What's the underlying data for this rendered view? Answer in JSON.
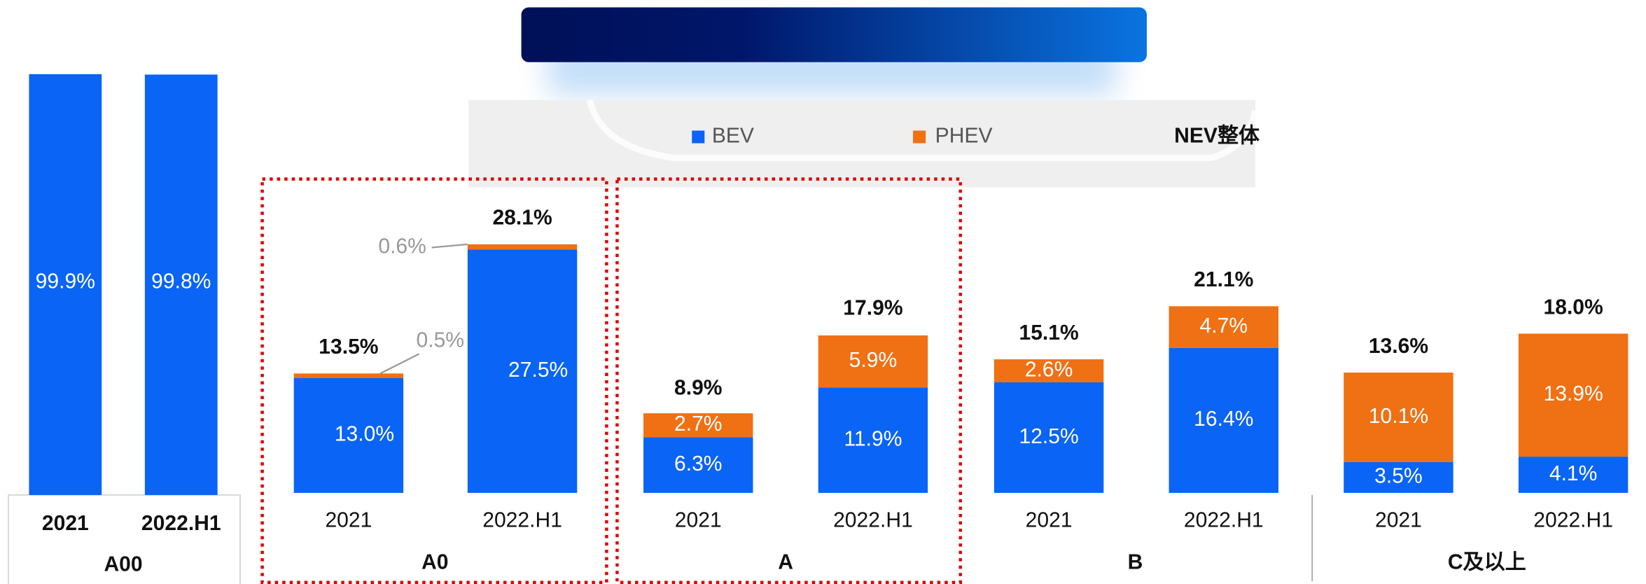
{
  "chart_data": [
    {
      "type": "bar",
      "group": "A00",
      "categories": [
        "2021",
        "2022.H1"
      ],
      "series": [
        {
          "color": "#0a64f5",
          "values": [
            99.9,
            99.8
          ],
          "value_labels": [
            "99.9%",
            "99.8%"
          ]
        }
      ],
      "ylim": [
        0,
        100
      ]
    },
    {
      "type": "stacked_bar",
      "groups": [
        "A0",
        "A",
        "B",
        "C及以上"
      ],
      "categories": [
        "2021",
        "2022.H1",
        "2021",
        "2022.H1",
        "2021",
        "2022.H1",
        "2021",
        "2022.H1"
      ],
      "series": [
        {
          "name": "BEV",
          "color": "#0a64f5",
          "values": [
            13.0,
            27.5,
            6.3,
            11.9,
            12.5,
            16.4,
            3.5,
            4.1
          ],
          "value_labels": [
            "13.0%",
            "27.5%",
            "6.3%",
            "11.9%",
            "12.5%",
            "16.4%",
            "3.5%",
            "4.1%"
          ]
        },
        {
          "name": "PHEV",
          "color": "#f07014",
          "values": [
            0.5,
            0.6,
            2.7,
            5.9,
            2.6,
            4.7,
            10.1,
            13.9
          ],
          "value_labels": [
            "0.5%",
            "0.6%",
            "2.7%",
            "5.9%",
            "2.6%",
            "4.7%",
            "10.1%",
            "13.9%"
          ]
        }
      ],
      "totals": {
        "name": "NEV整体",
        "values": [
          13.5,
          28.1,
          8.9,
          17.9,
          15.1,
          21.1,
          13.6,
          18.0
        ],
        "value_labels": [
          "13.5%",
          "28.1%",
          "8.9%",
          "17.9%",
          "15.1%",
          "21.1%",
          "13.6%",
          "18.0%"
        ]
      },
      "ylim": [
        0,
        30
      ]
    }
  ]
}
